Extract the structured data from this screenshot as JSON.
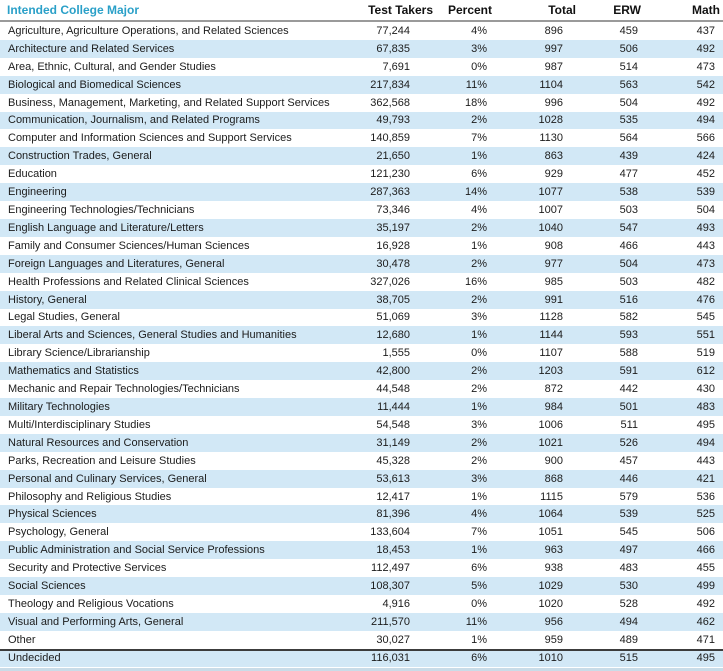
{
  "chart_data": {
    "type": "table",
    "title": "Intended College Major",
    "columns": [
      "Intended College Major",
      "Test Takers",
      "Percent",
      "Total",
      "ERW",
      "Math"
    ],
    "rows": [
      [
        "Agriculture, Agriculture Operations, and Related Sciences",
        "77,244",
        "4%",
        "896",
        "459",
        "437"
      ],
      [
        "Architecture and Related Services",
        "67,835",
        "3%",
        "997",
        "506",
        "492"
      ],
      [
        "Area, Ethnic, Cultural, and Gender Studies",
        "7,691",
        "0%",
        "987",
        "514",
        "473"
      ],
      [
        "Biological and Biomedical Sciences",
        "217,834",
        "11%",
        "1104",
        "563",
        "542"
      ],
      [
        "Business, Management, Marketing, and Related Support Services",
        "362,568",
        "18%",
        "996",
        "504",
        "492"
      ],
      [
        "Communication, Journalism, and Related Programs",
        "49,793",
        "2%",
        "1028",
        "535",
        "494"
      ],
      [
        "Computer and Information Sciences and Support Services",
        "140,859",
        "7%",
        "1130",
        "564",
        "566"
      ],
      [
        "Construction Trades, General",
        "21,650",
        "1%",
        "863",
        "439",
        "424"
      ],
      [
        "Education",
        "121,230",
        "6%",
        "929",
        "477",
        "452"
      ],
      [
        "Engineering",
        "287,363",
        "14%",
        "1077",
        "538",
        "539"
      ],
      [
        "Engineering Technologies/Technicians",
        "73,346",
        "4%",
        "1007",
        "503",
        "504"
      ],
      [
        "English Language and Literature/Letters",
        "35,197",
        "2%",
        "1040",
        "547",
        "493"
      ],
      [
        "Family and Consumer Sciences/Human Sciences",
        "16,928",
        "1%",
        "908",
        "466",
        "443"
      ],
      [
        "Foreign Languages and Literatures, General",
        "30,478",
        "2%",
        "977",
        "504",
        "473"
      ],
      [
        "Health Professions and Related Clinical Sciences",
        "327,026",
        "16%",
        "985",
        "503",
        "482"
      ],
      [
        "History, General",
        "38,705",
        "2%",
        "991",
        "516",
        "476"
      ],
      [
        "Legal Studies, General",
        "51,069",
        "3%",
        "1128",
        "582",
        "545"
      ],
      [
        "Liberal Arts and Sciences, General Studies and Humanities",
        "12,680",
        "1%",
        "1144",
        "593",
        "551"
      ],
      [
        "Library Science/Librarianship",
        "1,555",
        "0%",
        "1107",
        "588",
        "519"
      ],
      [
        "Mathematics and Statistics",
        "42,800",
        "2%",
        "1203",
        "591",
        "612"
      ],
      [
        "Mechanic and Repair Technologies/Technicians",
        "44,548",
        "2%",
        "872",
        "442",
        "430"
      ],
      [
        "Military Technologies",
        "11,444",
        "1%",
        "984",
        "501",
        "483"
      ],
      [
        "Multi/Interdisciplinary Studies",
        "54,548",
        "3%",
        "1006",
        "511",
        "495"
      ],
      [
        "Natural Resources and Conservation",
        "31,149",
        "2%",
        "1021",
        "526",
        "494"
      ],
      [
        "Parks, Recreation and Leisure Studies",
        "45,328",
        "2%",
        "900",
        "457",
        "443"
      ],
      [
        "Personal and Culinary Services, General",
        "53,613",
        "3%",
        "868",
        "446",
        "421"
      ],
      [
        "Philosophy and Religious Studies",
        "12,417",
        "1%",
        "1115",
        "579",
        "536"
      ],
      [
        "Physical Sciences",
        "81,396",
        "4%",
        "1064",
        "539",
        "525"
      ],
      [
        "Psychology, General",
        "133,604",
        "7%",
        "1051",
        "545",
        "506"
      ],
      [
        "Public Administration and Social Service Professions",
        "18,453",
        "1%",
        "963",
        "497",
        "466"
      ],
      [
        "Security and Protective Services",
        "112,497",
        "6%",
        "938",
        "483",
        "455"
      ],
      [
        "Social Sciences",
        "108,307",
        "5%",
        "1029",
        "530",
        "499"
      ],
      [
        "Theology and Religious Vocations",
        "4,916",
        "0%",
        "1020",
        "528",
        "492"
      ],
      [
        "Visual and Performing Arts, General",
        "211,570",
        "11%",
        "956",
        "494",
        "462"
      ],
      [
        "Other",
        "30,027",
        "1%",
        "959",
        "489",
        "471"
      ],
      [
        "Undecided",
        "116,031",
        "6%",
        "1010",
        "515",
        "495"
      ]
    ],
    "layout_hints": {
      "striped_rows": "even rows shaded light blue",
      "separator_above_last_row": true,
      "numeric_columns_right_aligned": true
    }
  },
  "colors": {
    "title_text": "#2aa0c8",
    "stripe": "#d2e8f6",
    "header_rule": "#9a9a9a",
    "section_rule": "#3c3c3c",
    "bottom_strip": "#c9dce8",
    "body_text": "#1c1c1c",
    "header_text": "#111111"
  }
}
